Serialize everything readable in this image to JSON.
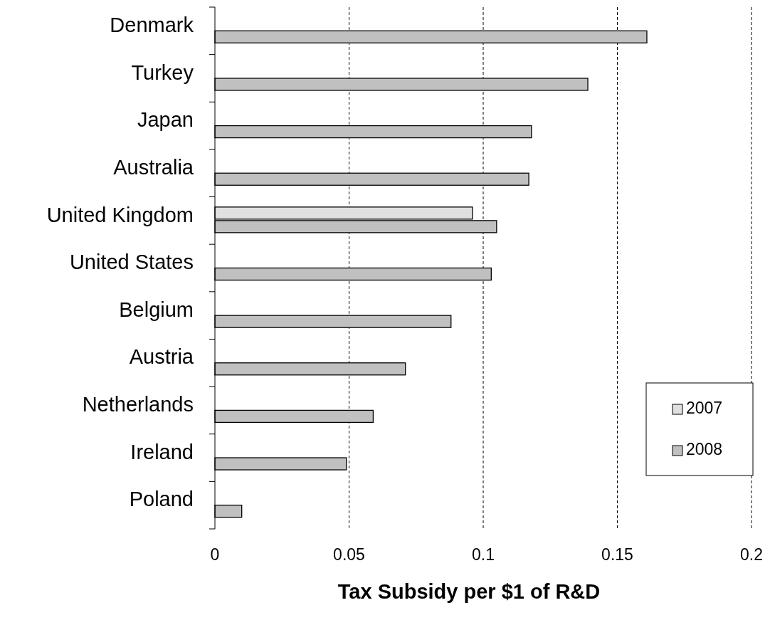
{
  "chart_data": {
    "type": "bar",
    "orientation": "horizontal",
    "xlabel": "Tax Subsidy per $1 of R&D",
    "categories": [
      "Denmark",
      "Turkey",
      "Japan",
      "Australia",
      "United Kingdom",
      "United States",
      "Belgium",
      "Austria",
      "Netherlands",
      "Ireland",
      "Poland"
    ],
    "series": [
      {
        "name": "2007",
        "color": "#e0e0e0",
        "values": [
          null,
          null,
          null,
          null,
          0.096,
          null,
          null,
          null,
          null,
          null,
          null
        ]
      },
      {
        "name": "2008",
        "color": "#c0c0c0",
        "values": [
          0.161,
          0.139,
          0.118,
          0.117,
          0.105,
          0.103,
          0.088,
          0.071,
          0.059,
          0.049,
          0.01
        ]
      }
    ],
    "xlim": [
      0,
      0.2
    ],
    "xticks": [
      0,
      0.05,
      0.1,
      0.15,
      0.2
    ],
    "grid": "x",
    "legend": "bottom right"
  }
}
